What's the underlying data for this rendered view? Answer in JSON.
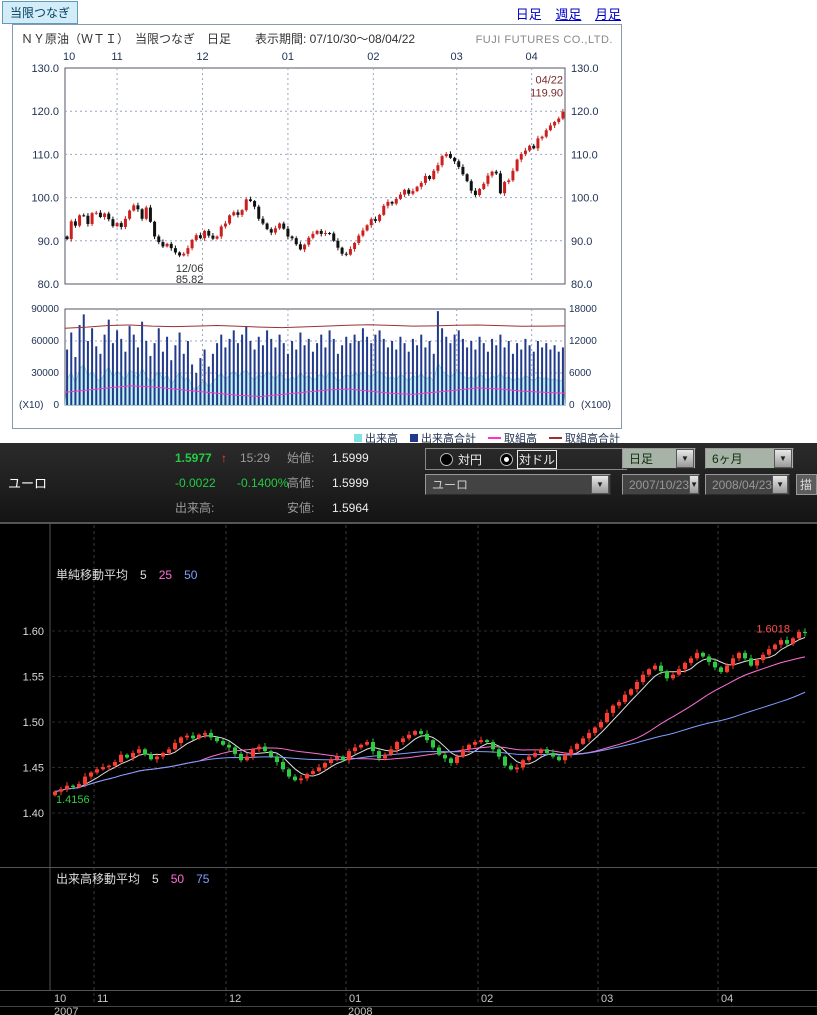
{
  "top_section": {
    "tab_label": "当限つなぎ",
    "links": [
      {
        "label": "日足"
      },
      {
        "label": "週足"
      },
      {
        "label": "月足"
      }
    ],
    "panel_title": "ＮＹ原油（ＷＴＩ）　当限つなぎ　日足　　表示期間: 07/10/30〜08/04/22",
    "brand": "FUJI FUTURES CO.,LTD.",
    "legend": [
      {
        "name": "出来高",
        "color": "#7fe3e3",
        "marker": "square"
      },
      {
        "name": "出来高合計",
        "color": "#223a8c",
        "marker": "square"
      },
      {
        "name": "取組高",
        "color": "#ff33cc",
        "marker": "line"
      },
      {
        "name": "取組高合計",
        "color": "#993333",
        "marker": "line"
      }
    ]
  },
  "chart_data": [
    {
      "type": "candlestick",
      "title": "ＮＹ原油（ＷＴＩ）当限つなぎ 日足",
      "period_label": "07/10/30〜08/04/22",
      "ylim": [
        80,
        130
      ],
      "yticks": [
        130,
        120,
        110,
        100,
        90,
        80
      ],
      "months": [
        {
          "label": "10",
          "start": 0
        },
        {
          "label": "11",
          "start": 2
        },
        {
          "label": "12",
          "start": 23
        },
        {
          "label": "01",
          "start": 43
        },
        {
          "label": "02",
          "start": 64
        },
        {
          "label": "03",
          "start": 84
        },
        {
          "label": "04",
          "start": 104
        }
      ],
      "up_color": "#cc2020",
      "down_color": "#111111",
      "closes": [
        90.4,
        94.5,
        93.5,
        95.9,
        95.8,
        93.9,
        96.4,
        96.5,
        95.5,
        96.3,
        95.0,
        93.4,
        94.1,
        93.2,
        95.1,
        97.0,
        98.2,
        97.3,
        95.1,
        97.7,
        94.4,
        91.0,
        89.7,
        88.7,
        89.3,
        88.3,
        87.3,
        86.6,
        87.0,
        88.3,
        90.2,
        91.3,
        90.6,
        92.3,
        91.2,
        90.5,
        91.0,
        93.3,
        94.0,
        95.9,
        96.6,
        96.0,
        97.1,
        99.6,
        99.2,
        97.9,
        95.1,
        94.0,
        92.7,
        91.9,
        92.9,
        94.0,
        92.8,
        91.0,
        90.6,
        89.2,
        88.0,
        89.1,
        90.7,
        91.6,
        92.3,
        91.6,
        91.8,
        91.7,
        90.0,
        88.4,
        87.0,
        86.8,
        88.1,
        89.5,
        91.2,
        92.4,
        93.6,
        95.0,
        94.6,
        96.0,
        98.1,
        99.0,
        98.6,
        99.7,
        100.7,
        101.8,
        100.9,
        101.5,
        102.5,
        103.4,
        105.0,
        104.3,
        106.2,
        107.5,
        109.6,
        110.1,
        109.2,
        108.4,
        107.1,
        105.4,
        103.8,
        101.6,
        100.6,
        102.0,
        103.2,
        105.1,
        106.0,
        105.6,
        101.0,
        103.6,
        104.0,
        106.2,
        108.8,
        110.1,
        110.9,
        112.0,
        111.4,
        113.7,
        114.1,
        115.6,
        116.7,
        117.5,
        118.3,
        119.9
      ],
      "annotations": [
        {
          "index": 119,
          "value": 119.9,
          "lines": [
            "04/22",
            "119.90"
          ],
          "placement": "above",
          "color": "#7a2a2a"
        },
        {
          "index": 27,
          "value": 85.82,
          "lines": [
            "12/06",
            "85.82"
          ],
          "placement": "below",
          "color": "#333333"
        }
      ]
    },
    {
      "type": "volume",
      "ylim_left": [
        0,
        90000
      ],
      "yticks_left": [
        90000,
        60000,
        30000,
        0
      ],
      "yticks_right": [
        18000,
        12000,
        6000,
        0
      ],
      "unit_left": "(X10)",
      "unit_right": "(X100)",
      "series": [
        {
          "name": "出来高",
          "kind": "area",
          "color": "#66cccc",
          "fill": "#c0f2f2",
          "values": [
            24000,
            31000,
            20000,
            34000,
            38000,
            27000,
            32000,
            25000,
            22000,
            30000,
            36000,
            26000,
            32000,
            28000,
            23000,
            33000,
            30000,
            24000,
            35000,
            27000,
            21000,
            26000,
            32000,
            23000,
            29000,
            19000,
            25000,
            31000,
            22000,
            27000,
            17000,
            14000,
            20000,
            23000,
            16000,
            22000,
            26000,
            30000,
            24000,
            28000,
            32000,
            26000,
            30000,
            33000,
            27000,
            23000,
            29000,
            25000,
            32000,
            28000,
            24000,
            30000,
            26000,
            22000,
            27000,
            23000,
            31000,
            25000,
            28000,
            23000,
            26000,
            30000,
            24000,
            32000,
            28000,
            22000,
            25000,
            29000,
            26000,
            30000,
            27000,
            32000,
            29000,
            26000,
            30000,
            32000,
            28000,
            24000,
            27000,
            23000,
            29000,
            26000,
            22000,
            28000,
            25000,
            30000,
            24000,
            27000,
            22000,
            40000,
            32000,
            29000,
            26000,
            30000,
            32000,
            28000,
            24000,
            27000,
            23000,
            29000,
            26000,
            22000,
            28000,
            25000,
            30000,
            24000,
            27000,
            22000,
            26000,
            23000,
            28000,
            25000,
            22000,
            27000,
            24000,
            26000,
            23000,
            25000,
            22000,
            24000
          ]
        },
        {
          "name": "出来高合計",
          "kind": "bar",
          "color": "#223a8c",
          "values": [
            52000,
            68000,
            45000,
            75000,
            85000,
            60000,
            72000,
            55000,
            48000,
            66000,
            80000,
            58000,
            70000,
            62000,
            50000,
            74000,
            66000,
            54000,
            78000,
            60000,
            46000,
            58000,
            72000,
            50000,
            64000,
            42000,
            56000,
            68000,
            48000,
            60000,
            38000,
            30000,
            44000,
            52000,
            36000,
            48000,
            58000,
            66000,
            54000,
            62000,
            70000,
            58000,
            66000,
            74000,
            60000,
            52000,
            64000,
            56000,
            70000,
            62000,
            54000,
            66000,
            58000,
            48000,
            60000,
            52000,
            68000,
            56000,
            62000,
            50000,
            58000,
            66000,
            54000,
            70000,
            62000,
            48000,
            56000,
            64000,
            58000,
            66000,
            60000,
            72000,
            64000,
            58000,
            66000,
            70000,
            62000,
            54000,
            60000,
            52000,
            64000,
            58000,
            50000,
            62000,
            56000,
            66000,
            54000,
            60000,
            48000,
            88000,
            72000,
            64000,
            58000,
            66000,
            70000,
            62000,
            54000,
            60000,
            52000,
            64000,
            58000,
            50000,
            62000,
            56000,
            66000,
            54000,
            60000,
            48000,
            58000,
            52000,
            62000,
            56000,
            50000,
            60000,
            54000,
            58000,
            52000,
            56000,
            50000,
            54000
          ]
        },
        {
          "name": "取組高",
          "kind": "line",
          "color": "#ff33cc",
          "values": [
            12000,
            14000,
            16000,
            18000,
            17000,
            15000,
            13000,
            11000,
            9000,
            8000,
            10000,
            12000,
            14000,
            15000,
            13000,
            11000,
            10000,
            12000,
            14000,
            16000,
            15000,
            13000,
            12000,
            11000
          ]
        },
        {
          "name": "取組高合計",
          "kind": "line",
          "color": "#993333",
          "values": [
            72000,
            73000,
            74500,
            75000,
            74000,
            73500,
            74000,
            74500,
            73800,
            73000,
            72500,
            73200,
            74000,
            74800,
            75200,
            74600,
            73900,
            74200,
            74800,
            75000,
            74400,
            73800,
            74000,
            74200
          ]
        }
      ]
    },
    {
      "type": "candlestick",
      "ylim": [
        1.4,
        1.6
      ],
      "yticks": [
        "1.60",
        "1.55",
        "1.50",
        "1.45",
        "1.40"
      ],
      "months": [
        {
          "label": "10",
          "start": 0
        },
        {
          "label": "11",
          "start": 7
        },
        {
          "label": "12",
          "start": 29
        },
        {
          "label": "01",
          "start": 49
        },
        {
          "label": "02",
          "start": 71
        },
        {
          "label": "03",
          "start": 91
        },
        {
          "label": "04",
          "start": 111
        }
      ],
      "years": [
        {
          "label": "2007",
          "start": 0
        },
        {
          "label": "2008",
          "start": 49
        }
      ],
      "up_color": "#ff3b30",
      "down_color": "#2ecc40",
      "ma_label_title": "単純移動平均",
      "ma_items": [
        {
          "period": "5",
          "color": "#e0e0e0"
        },
        {
          "period": "25",
          "color": "#ff6fd8"
        },
        {
          "period": "50",
          "color": "#7f9fff"
        }
      ],
      "vol_ma_label_title": "出来高移動平均",
      "vol_ma_items": [
        {
          "period": "5",
          "color": "#e0e0e0"
        },
        {
          "period": "50",
          "color": "#ff6fd8"
        },
        {
          "period": "75",
          "color": "#7f9fff"
        }
      ],
      "closes": [
        1.4235,
        1.4262,
        1.43,
        1.4285,
        1.432,
        1.44,
        1.4445,
        1.448,
        1.4505,
        1.452,
        1.456,
        1.464,
        1.461,
        1.466,
        1.47,
        1.4645,
        1.459,
        1.462,
        1.466,
        1.47,
        1.477,
        1.483,
        1.485,
        1.482,
        1.486,
        1.488,
        1.483,
        1.479,
        1.475,
        1.472,
        1.465,
        1.458,
        1.462,
        1.47,
        1.473,
        1.468,
        1.462,
        1.456,
        1.448,
        1.44,
        1.436,
        1.438,
        1.443,
        1.446,
        1.45,
        1.455,
        1.459,
        1.462,
        1.458,
        1.468,
        1.472,
        1.475,
        1.478,
        1.468,
        1.46,
        1.464,
        1.47,
        1.478,
        1.482,
        1.486,
        1.49,
        1.487,
        1.48,
        1.472,
        1.464,
        1.46,
        1.455,
        1.462,
        1.47,
        1.475,
        1.478,
        1.48,
        1.478,
        1.47,
        1.462,
        1.452,
        1.448,
        1.45,
        1.458,
        1.462,
        1.466,
        1.47,
        1.466,
        1.462,
        1.458,
        1.464,
        1.47,
        1.476,
        1.482,
        1.488,
        1.494,
        1.5,
        1.51,
        1.518,
        1.522,
        1.53,
        1.536,
        1.544,
        1.552,
        1.558,
        1.562,
        1.556,
        1.548,
        1.552,
        1.558,
        1.565,
        1.57,
        1.576,
        1.572,
        1.566,
        1.56,
        1.555,
        1.562,
        1.57,
        1.576,
        1.57,
        1.562,
        1.568,
        1.574,
        1.58,
        1.585,
        1.59,
        1.586,
        1.592,
        1.599,
        1.5977
      ],
      "annotations": [
        {
          "text": "1.6018",
          "value": 1.6018,
          "color": "#ff5050",
          "anchor": "end"
        },
        {
          "text": "1.4156",
          "value": 1.4156,
          "color": "#2ecc40",
          "anchor": "start"
        }
      ]
    }
  ],
  "fx_panel": {
    "symbol": "ユーロ",
    "price": "1.5977",
    "arrow": "↑",
    "time": "15:29",
    "change": "-0.0022",
    "change_pct": "-0.1400%",
    "open_label": "始値:",
    "open": "1.5999",
    "high_label": "高値:",
    "high": "1.5999",
    "low_label": "安値:",
    "low": "1.5964",
    "volume_label": "出来高:",
    "volume_value": "",
    "radio_options": [
      {
        "label": "対円",
        "selected": false
      },
      {
        "label": "対ドル",
        "selected": true
      }
    ],
    "symbol_select": "ユーロ",
    "timeframe_select": "日足",
    "range_select": "6ヶ月",
    "date_from": "2007/10/23",
    "date_to": "2008/04/23",
    "draw_button_label": "描"
  }
}
